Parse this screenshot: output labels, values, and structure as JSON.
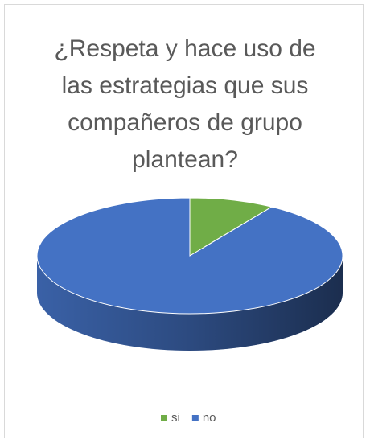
{
  "chart_data": {
    "type": "pie3d",
    "title": "¿Respeta y hace uso de las estrategias que sus compañeros de grupo plantean?",
    "series": [
      {
        "name": "si",
        "color": "#70ad47",
        "value": 9
      },
      {
        "name": "no",
        "color": "#4472c4",
        "value": 91
      }
    ],
    "legend": "bottom"
  }
}
